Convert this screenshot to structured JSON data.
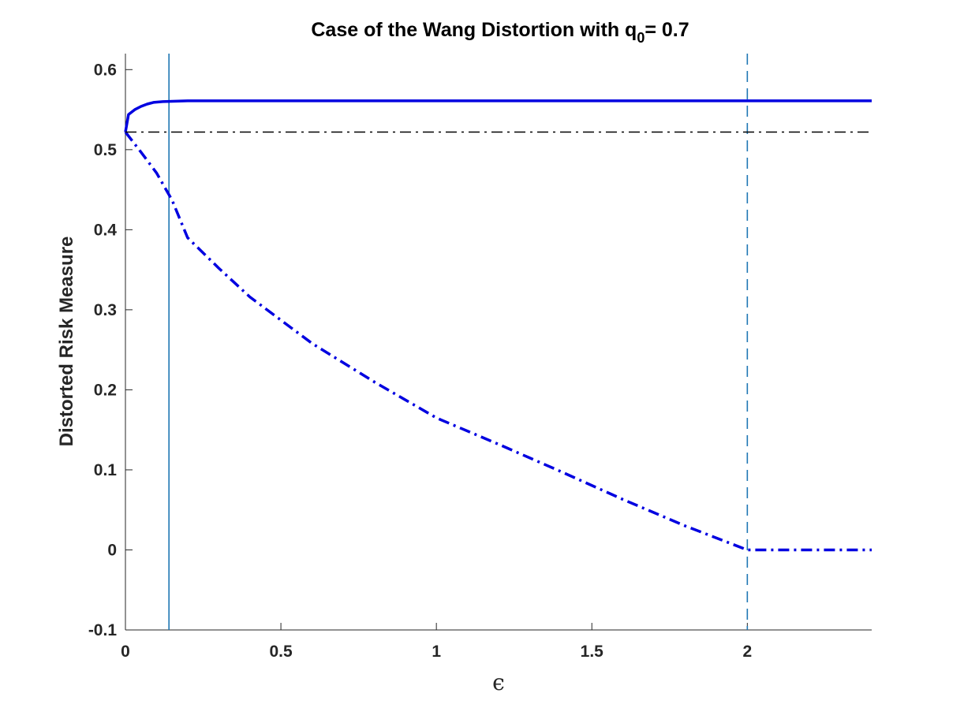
{
  "chart_data": {
    "type": "line",
    "title": {
      "prefix": "Case of the Wang Distortion with q",
      "subscript": "0",
      "suffix": "= 0.7"
    },
    "xlabel": "ϵ",
    "ylabel": "Distorted Risk Measure",
    "xlim": [
      0,
      2.4
    ],
    "ylim": [
      -0.1,
      0.62
    ],
    "xticks": [
      0,
      0.5,
      1,
      1.5,
      2
    ],
    "xtick_labels": [
      "0",
      "0.5",
      "1",
      "1.5",
      "2"
    ],
    "yticks": [
      -0.1,
      0,
      0.1,
      0.2,
      0.3,
      0.4,
      0.5,
      0.6
    ],
    "ytick_labels": [
      "-0.1",
      "0",
      "0.1",
      "0.2",
      "0.3",
      "0.4",
      "0.5",
      "0.6"
    ],
    "grid": false,
    "series": [
      {
        "style": "solid",
        "color": "#0000e0",
        "x": [
          0,
          0.01,
          0.03,
          0.05,
          0.07,
          0.09,
          0.12,
          0.2,
          0.4,
          1.0,
          2.0,
          2.4
        ],
        "y": [
          0.522,
          0.544,
          0.55,
          0.554,
          0.557,
          0.559,
          0.56,
          0.561,
          0.561,
          0.561,
          0.561,
          0.561
        ]
      },
      {
        "style": "dashdot",
        "color": "#0000e0",
        "x": [
          0,
          0.05,
          0.1,
          0.15,
          0.2,
          0.3,
          0.4,
          0.6,
          0.8,
          1.0,
          1.2,
          1.4,
          1.6,
          1.8,
          2.0,
          2.4
        ],
        "y": [
          0.522,
          0.497,
          0.471,
          0.437,
          0.39,
          0.352,
          0.316,
          0.258,
          0.21,
          0.165,
          0.132,
          0.098,
          0.063,
          0.03,
          0.0,
          0.0
        ]
      },
      {
        "style": "dashdot-thin",
        "color": "#000000",
        "x": [
          0,
          2.4
        ],
        "y": [
          0.522,
          0.522
        ]
      }
    ],
    "vlines": [
      {
        "x": 0.14,
        "style": "solid",
        "color": "#1f77b4"
      },
      {
        "x": 2.0,
        "style": "dashed",
        "color": "#1f77b4"
      }
    ]
  }
}
